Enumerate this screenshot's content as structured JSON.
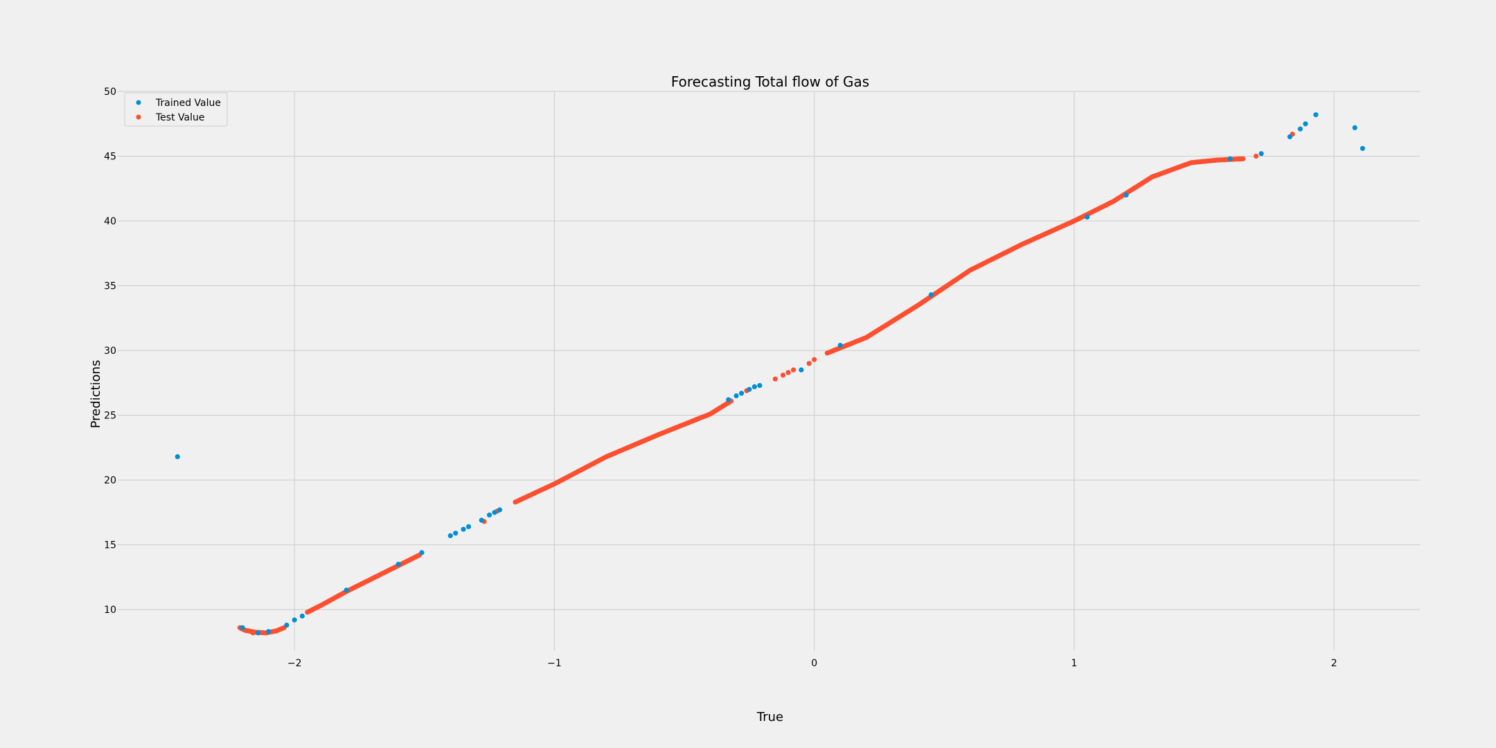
{
  "chart_data": {
    "type": "scatter",
    "title": "Forecasting Total flow of Gas",
    "xlabel": "True",
    "ylabel": "Predictions",
    "xlim": [
      -2.68,
      2.33
    ],
    "ylim": [
      6.8,
      50
    ],
    "xticks": [
      -2,
      -1,
      0,
      1,
      2
    ],
    "xtick_labels": [
      "−2",
      "−1",
      "0",
      "1",
      "2"
    ],
    "yticks": [
      10,
      15,
      20,
      25,
      30,
      35,
      40,
      45,
      50
    ],
    "ytick_labels": [
      "10",
      "15",
      "20",
      "25",
      "30",
      "35",
      "40",
      "45",
      "50"
    ],
    "grid": true,
    "legend_position": "top-left",
    "series": [
      {
        "name": "Trained Value",
        "color": "#008fd5",
        "points": [
          [
            -2.45,
            21.8
          ],
          [
            -2.2,
            8.6
          ],
          [
            -2.14,
            8.2
          ],
          [
            -2.1,
            8.3
          ],
          [
            -2.03,
            8.8
          ],
          [
            -2.0,
            9.2
          ],
          [
            -1.97,
            9.5
          ],
          [
            -1.8,
            11.5
          ],
          [
            -1.6,
            13.5
          ],
          [
            -1.51,
            14.4
          ],
          [
            -1.4,
            15.7
          ],
          [
            -1.38,
            15.9
          ],
          [
            -1.35,
            16.2
          ],
          [
            -1.33,
            16.4
          ],
          [
            -1.28,
            16.9
          ],
          [
            -1.25,
            17.3
          ],
          [
            -1.23,
            17.5
          ],
          [
            -1.21,
            17.7
          ],
          [
            -0.33,
            26.2
          ],
          [
            -0.3,
            26.5
          ],
          [
            -0.28,
            26.7
          ],
          [
            -0.25,
            27.0
          ],
          [
            -0.23,
            27.2
          ],
          [
            -0.21,
            27.3
          ],
          [
            -0.05,
            28.5
          ],
          [
            0.1,
            30.4
          ],
          [
            0.45,
            34.3
          ],
          [
            1.05,
            40.3
          ],
          [
            1.2,
            42.0
          ],
          [
            1.6,
            44.8
          ],
          [
            1.72,
            45.2
          ],
          [
            1.83,
            46.5
          ],
          [
            1.87,
            47.1
          ],
          [
            1.89,
            47.5
          ],
          [
            1.93,
            48.2
          ],
          [
            2.08,
            47.2
          ],
          [
            2.11,
            45.6
          ]
        ]
      },
      {
        "name": "Test Value",
        "color": "#fc4f30",
        "curves": [
          [
            [
              -2.21,
              8.6
            ],
            [
              -2.19,
              8.4
            ],
            [
              -2.15,
              8.25
            ],
            [
              -2.11,
              8.2
            ],
            [
              -2.07,
              8.35
            ],
            [
              -2.04,
              8.6
            ]
          ],
          [
            [
              -1.95,
              9.8
            ],
            [
              -1.9,
              10.3
            ],
            [
              -1.8,
              11.4
            ],
            [
              -1.7,
              12.4
            ],
            [
              -1.6,
              13.4
            ],
            [
              -1.52,
              14.2
            ]
          ],
          [
            [
              -1.15,
              18.3
            ],
            [
              -1.0,
              19.7
            ],
            [
              -0.8,
              21.8
            ],
            [
              -0.6,
              23.5
            ],
            [
              -0.4,
              25.1
            ],
            [
              -0.32,
              26.1
            ]
          ],
          [
            [
              0.05,
              29.8
            ],
            [
              0.2,
              31.0
            ],
            [
              0.4,
              33.5
            ],
            [
              0.6,
              36.2
            ],
            [
              0.8,
              38.2
            ],
            [
              1.0,
              40.0
            ],
            [
              1.15,
              41.5
            ],
            [
              1.3,
              43.4
            ],
            [
              1.45,
              44.5
            ],
            [
              1.55,
              44.7
            ],
            [
              1.65,
              44.8
            ]
          ]
        ],
        "points": [
          [
            -2.16,
            8.2
          ],
          [
            -1.27,
            16.8
          ],
          [
            -1.22,
            17.6
          ],
          [
            -0.26,
            26.9
          ],
          [
            -0.15,
            27.8
          ],
          [
            -0.12,
            28.1
          ],
          [
            -0.1,
            28.3
          ],
          [
            -0.08,
            28.5
          ],
          [
            -0.02,
            29.0
          ],
          [
            0.0,
            29.3
          ],
          [
            1.7,
            45.0
          ],
          [
            1.84,
            46.7
          ]
        ]
      }
    ]
  }
}
